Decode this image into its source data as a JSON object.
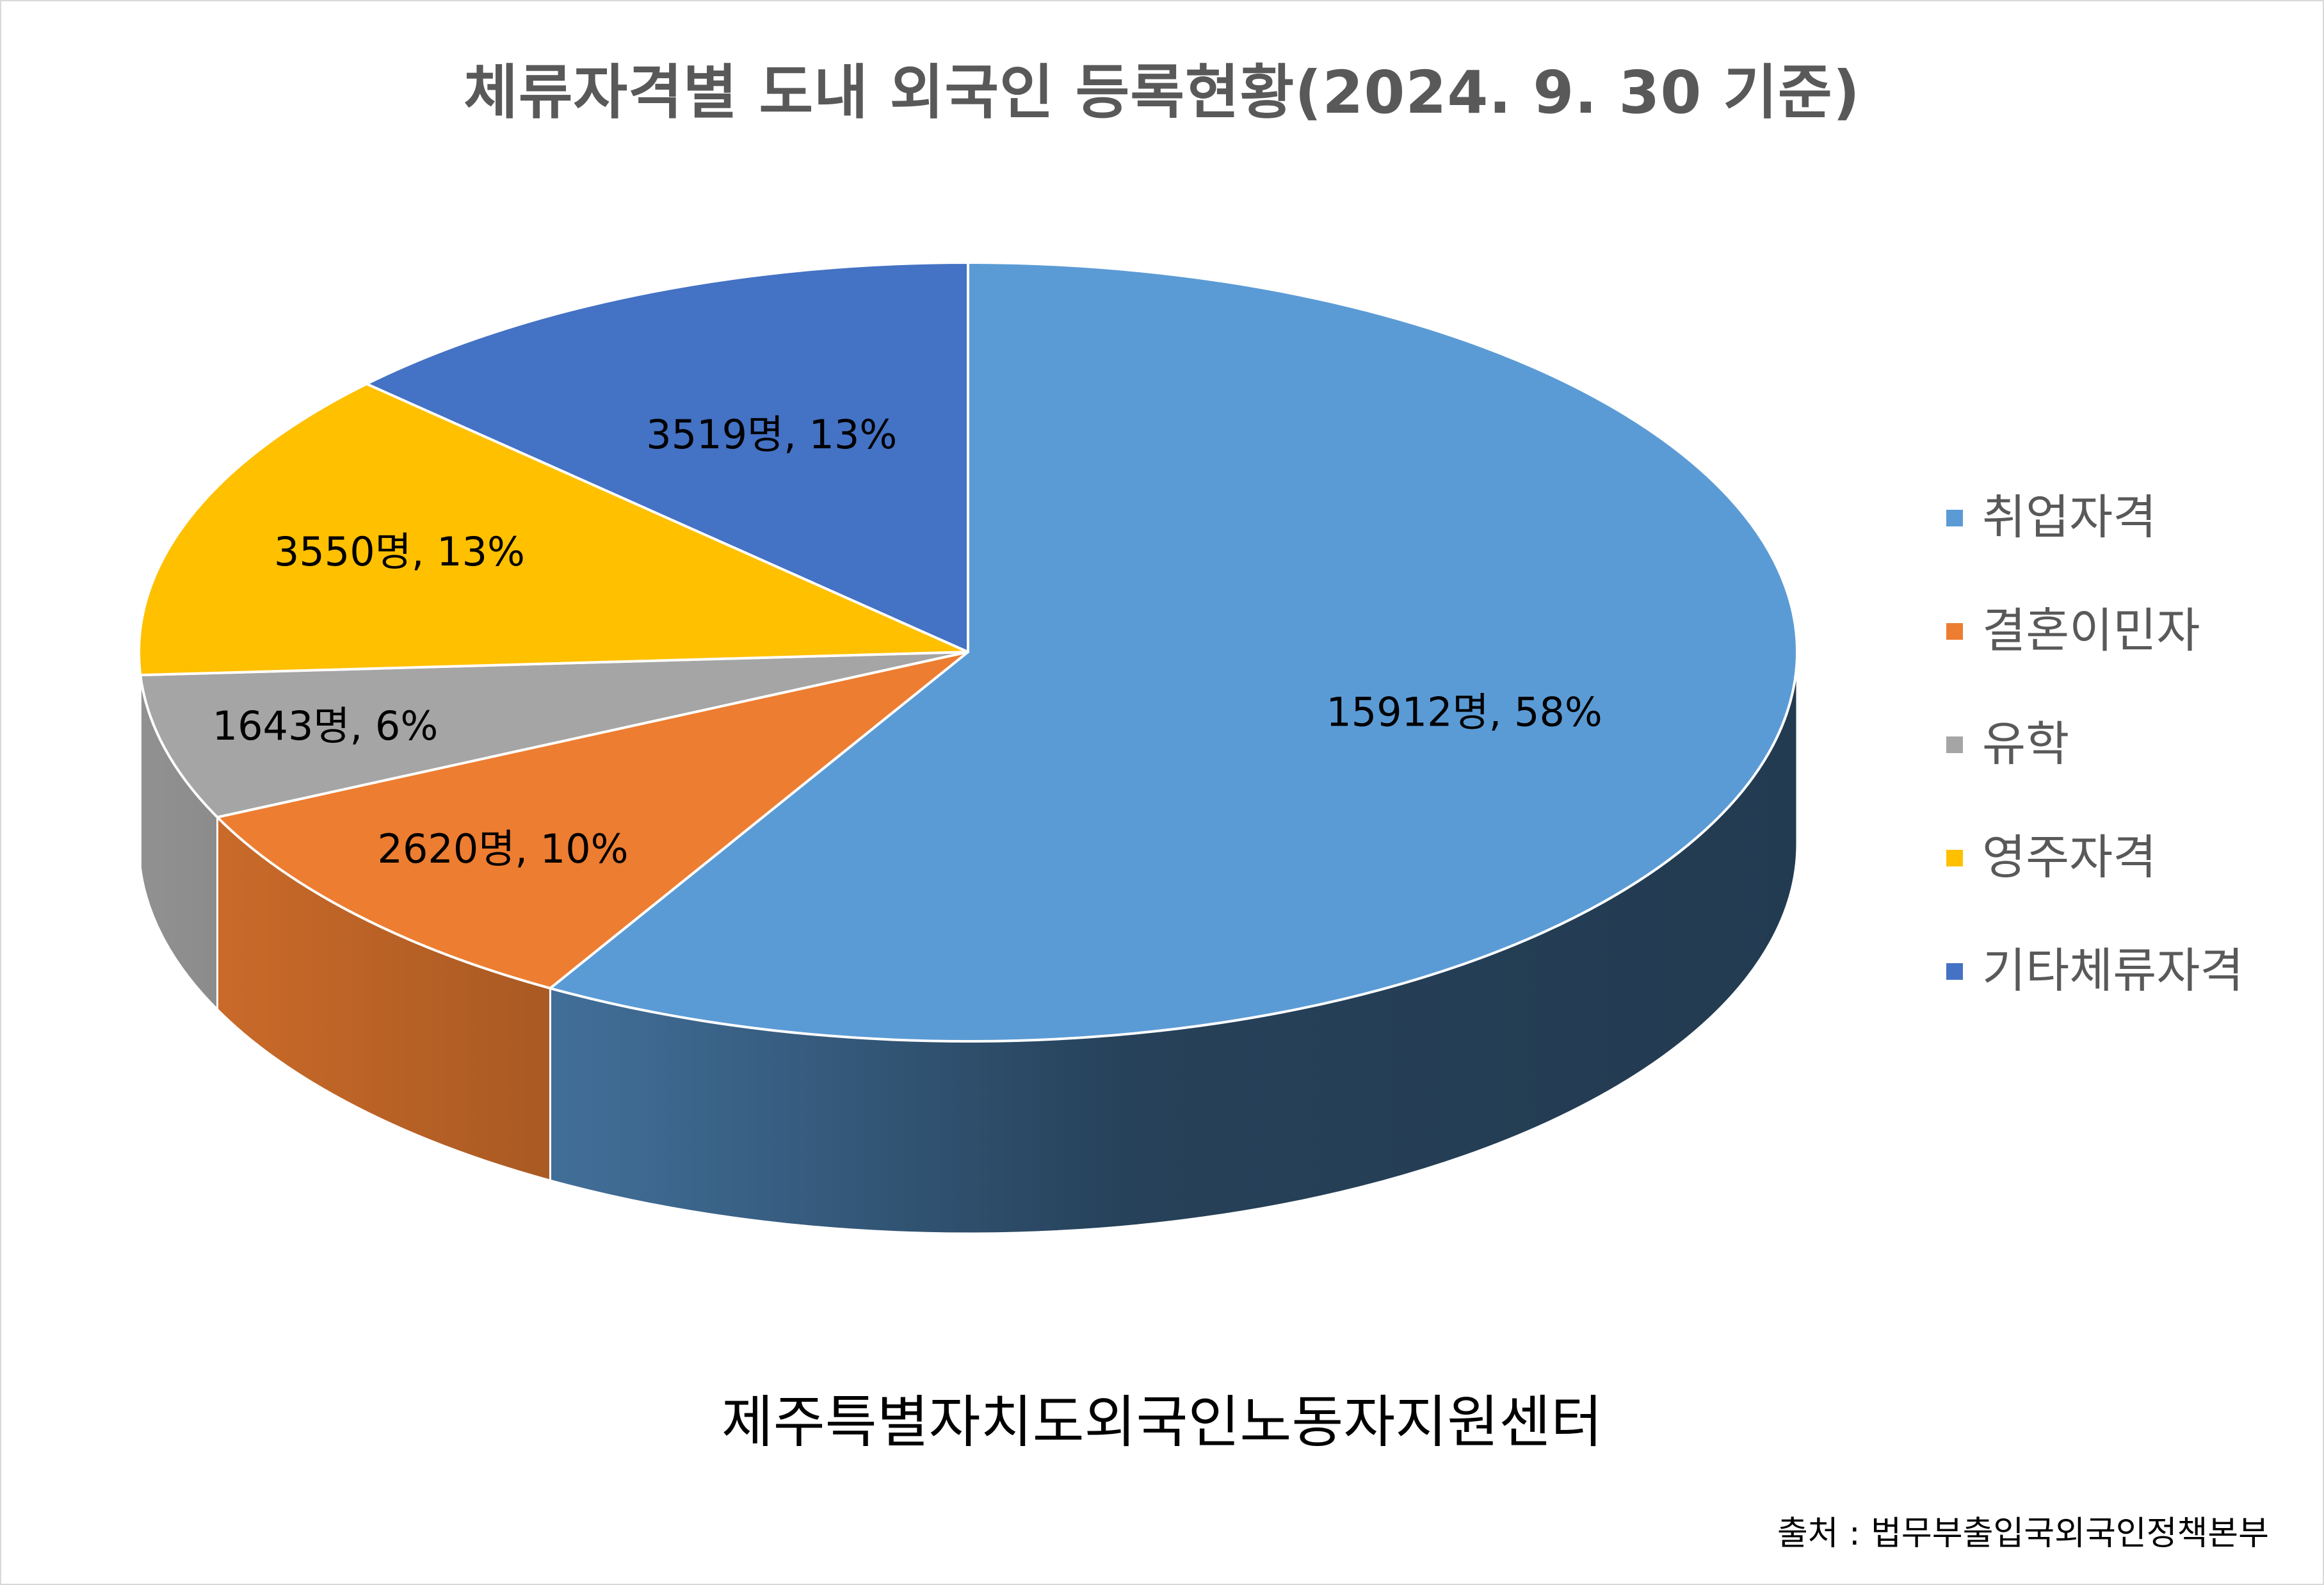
{
  "chart_data": {
    "type": "pie",
    "title": "체류자격별 도내 외국인 등록현황(2024. 9. 30 기준)",
    "categories": [
      "취업자격",
      "결혼이민자",
      "유학",
      "영주자격",
      "기타체류자격"
    ],
    "values": [
      15912,
      2620,
      1643,
      3550,
      3519
    ],
    "percent_labels": [
      "58%",
      "10%",
      "6%",
      "13%",
      "13%"
    ],
    "data_labels": [
      "15912명, 58%",
      "2620명, 10%",
      "1643명, 6%",
      "3550명, 13%",
      "3519명, 13%"
    ],
    "colors": [
      "#5b9bd5",
      "#ed7d31",
      "#a5a5a5",
      "#ffc000",
      "#4472c4"
    ],
    "style": "3d",
    "legend_position": "right"
  },
  "footer": {
    "organization": "제주특별자치도외국인노동자지원센터",
    "source": "출처 : 법무부출입국외국인정책본부"
  }
}
